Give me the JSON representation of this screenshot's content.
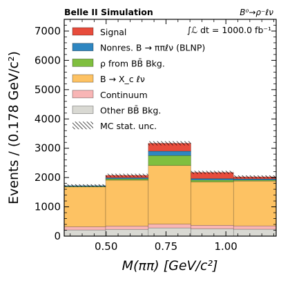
{
  "header": {
    "left_title": "Belle II Simulation",
    "right_title": "B⁰→ρ⁻ℓν",
    "luminosity": "∫ℒ dt = 1000.0 fb⁻¹"
  },
  "chart_data": {
    "type": "bar",
    "stacked": true,
    "xlabel": "M(ππ)  [GeV/c²]",
    "ylabel": "Events / (0.178 GeV/c²)",
    "xlim": [
      0.325,
      1.21
    ],
    "ylim": [
      0,
      7400
    ],
    "x_ticks": [
      "0.50",
      "0.75",
      "1.00"
    ],
    "x_tick_values": [
      0.5,
      0.75,
      1.0
    ],
    "y_ticks": [
      "0",
      "1000",
      "2000",
      "3000",
      "4000",
      "5000",
      "6000",
      "7000"
    ],
    "y_tick_values": [
      0,
      1000,
      2000,
      3000,
      4000,
      5000,
      6000,
      7000
    ],
    "bin_edges": [
      0.32,
      0.498,
      0.676,
      0.854,
      1.032,
      1.21
    ],
    "series": [
      {
        "name": "Other BB̄ Bkg.",
        "color": "#d9d9d3",
        "values": [
          210,
          230,
          280,
          250,
          235
        ]
      },
      {
        "name": "Continuum",
        "color": "#f8b5b5",
        "values": [
          110,
          115,
          130,
          120,
          115
        ]
      },
      {
        "name": "B → X_c ℓν",
        "color": "#fdc263",
        "values": [
          1360,
          1565,
          2000,
          1480,
          1530
        ]
      },
      {
        "name": "ρ from BB̄ Bkg.",
        "color": "#7fbf3f",
        "values": [
          20,
          45,
          340,
          65,
          35
        ]
      },
      {
        "name": "Nonres. B → ππℓν (BLNP)",
        "color": "#2e86c1",
        "values": [
          25,
          40,
          150,
          50,
          40
        ]
      },
      {
        "name": "Signal",
        "color": "#e74c3c",
        "values": [
          0,
          80,
          270,
          210,
          70
        ]
      }
    ],
    "stat_unc": {
      "name": "MC stat. unc.",
      "values": [
        45,
        55,
        70,
        55,
        50
      ]
    },
    "legend_position": "top-left",
    "grid": false
  }
}
